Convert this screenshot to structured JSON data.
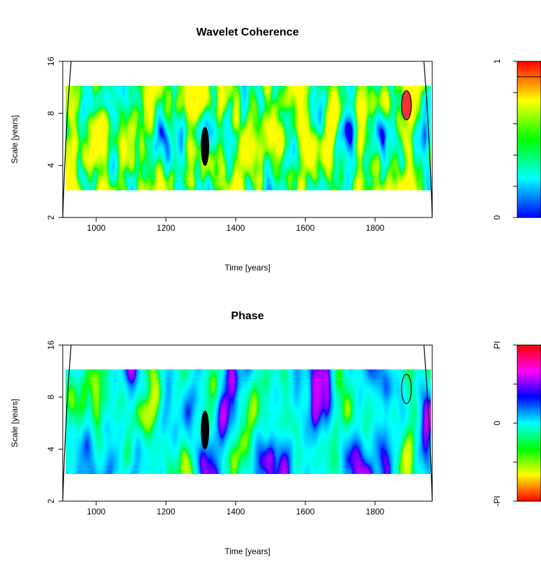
{
  "chart_data": [
    {
      "type": "heatmap",
      "title": "Wavelet Coherence",
      "xlabel": "Time [years]",
      "ylabel": "Scale [years]",
      "xlim": [
        904,
        1964
      ],
      "xticks": [
        1000,
        1200,
        1400,
        1600,
        1800
      ],
      "ylim": [
        2,
        16
      ],
      "yticks": [
        2,
        4,
        8,
        16
      ],
      "ylog": true,
      "colormap": "coherence",
      "colorbar": {
        "lim": [
          0,
          1
        ],
        "ticks": [
          0,
          1
        ],
        "minor_ticks": [
          0.2,
          0.4,
          0.6,
          0.8
        ]
      }
    },
    {
      "type": "heatmap",
      "title": "Phase",
      "xlabel": "Time [years]",
      "ylabel": "Scale [years]",
      "xlim": [
        904,
        1964
      ],
      "xticks": [
        1000,
        1200,
        1400,
        1600,
        1800
      ],
      "ylim": [
        2,
        16
      ],
      "yticks": [
        2,
        4,
        8,
        16
      ],
      "ylog": true,
      "colormap": "phase",
      "colorbar": {
        "lim": [
          -3.14159,
          3.14159
        ],
        "ticks": [
          {
            "value": -3.14159,
            "label": "-PI"
          },
          0,
          {
            "value": 3.14159,
            "label": "PI"
          }
        ],
        "minor_ticks": [
          -1.5708,
          1.5708
        ]
      }
    }
  ]
}
